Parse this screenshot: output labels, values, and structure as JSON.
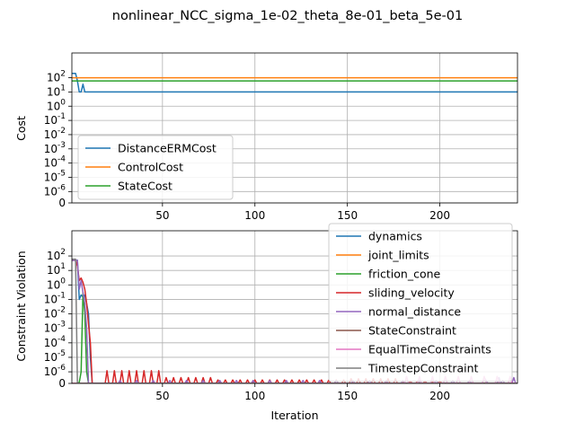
{
  "figure_title": "nonlinear_NCC_sigma_1e-02_theta_8e-01_beta_5e-01",
  "colors": {
    "blue": "#1f77b4",
    "orange": "#ff7f0e",
    "green": "#2ca02c",
    "red": "#d62728",
    "purple": "#9467bd",
    "brown": "#8c564b",
    "pink": "#e377c2",
    "gray": "#7f7f7f"
  },
  "chart_data": [
    {
      "type": "line",
      "title": "",
      "xlabel": "",
      "ylabel": "Cost",
      "yscale": "symlog",
      "xlim": [
        1,
        242
      ],
      "ytick_labels": [
        "0",
        "10",
        "10",
        "10",
        "10",
        "10",
        "10",
        "10",
        "10",
        "10"
      ],
      "ytick_exponents": [
        "",
        "-6",
        "-5",
        "-4",
        "-3",
        "-2",
        "-1",
        "0",
        "1",
        "2"
      ],
      "xtick_labels": [
        "50",
        "100",
        "150",
        "200"
      ],
      "xticks": [
        50,
        100,
        150,
        200
      ],
      "grid": true,
      "legend_position": "lower-left",
      "series": [
        {
          "name": "DistanceERMCost",
          "color": "#1f77b4",
          "points": [
            [
              1,
              200
            ],
            [
              3,
              200
            ],
            [
              4,
              60
            ],
            [
              5,
              10
            ],
            [
              6,
              10
            ],
            [
              7,
              35
            ],
            [
              8,
              10
            ],
            [
              242,
              10
            ]
          ]
        },
        {
          "name": "ControlCost",
          "color": "#ff7f0e",
          "points": [
            [
              1,
              100
            ],
            [
              242,
              100
            ]
          ]
        },
        {
          "name": "StateCost",
          "color": "#2ca02c",
          "points": [
            [
              1,
              60
            ],
            [
              242,
              60
            ]
          ]
        }
      ]
    },
    {
      "type": "line",
      "title": "",
      "xlabel": "Iteration",
      "ylabel": "Constraint Violation",
      "yscale": "symlog",
      "xlim": [
        1,
        242
      ],
      "ytick_labels": [
        "0",
        "10",
        "10",
        "10",
        "10",
        "10",
        "10",
        "10",
        "10",
        "10"
      ],
      "ytick_exponents": [
        "",
        "-6",
        "-5",
        "-4",
        "-3",
        "-2",
        "-1",
        "0",
        "1",
        "2"
      ],
      "xtick_labels": [
        "50",
        "100",
        "150",
        "200"
      ],
      "xticks": [
        50,
        100,
        150,
        200
      ],
      "grid": true,
      "legend_position": "right",
      "series": [
        {
          "name": "dynamics",
          "color": "#1f77b4"
        },
        {
          "name": "joint_limits",
          "color": "#ff7f0e"
        },
        {
          "name": "friction_cone",
          "color": "#2ca02c"
        },
        {
          "name": "sliding_velocity",
          "color": "#d62728"
        },
        {
          "name": "normal_distance",
          "color": "#9467bd"
        },
        {
          "name": "StateConstraint",
          "color": "#8c564b"
        },
        {
          "name": "EqualTimeConstraints",
          "color": "#e377c2"
        },
        {
          "name": "TimestepConstraint",
          "color": "#7f7f7f"
        }
      ]
    }
  ]
}
